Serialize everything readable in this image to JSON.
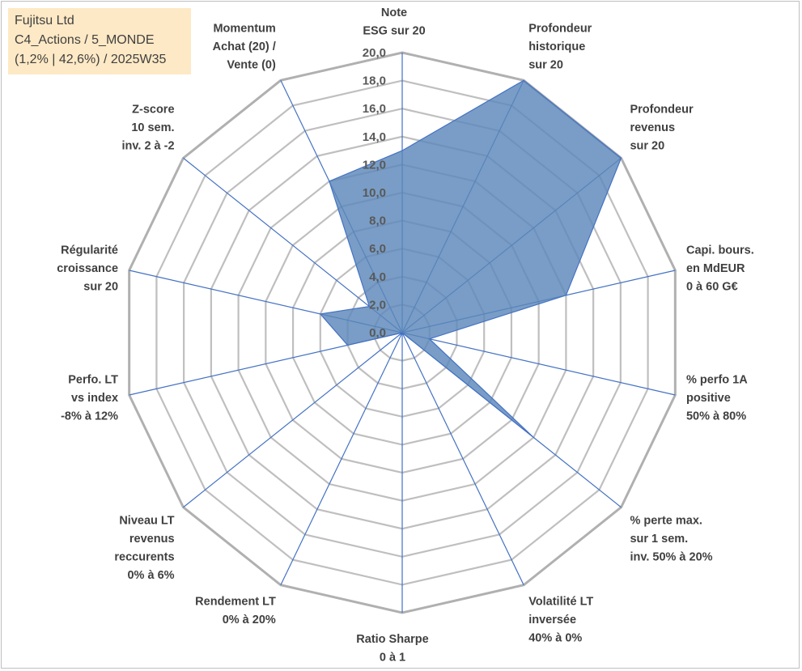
{
  "info_box": {
    "line1": "Fujitsu Ltd",
    "line2": "C4_Actions / 5_MONDE",
    "line3": "(1,2% | 42,6%) / 2025W35"
  },
  "colors": {
    "fill": "#5b87ba",
    "stroke": "#4472c4",
    "grid": "#bfbfbf",
    "grid_outer": "#b0b0b0"
  },
  "chart_data": {
    "type": "radar",
    "ylim": [
      0,
      20
    ],
    "tick_step": 2,
    "tick_labels": [
      "0,0",
      "2,0",
      "4,0",
      "6,0",
      "8,0",
      "10,0",
      "12,0",
      "14,0",
      "16,0",
      "18,0",
      "20,0"
    ],
    "axes": [
      {
        "label": [
          "Note",
          "ESG sur 20"
        ],
        "value": 13.0
      },
      {
        "label": [
          "Profondeur",
          "historique",
          "sur 20"
        ],
        "value": 20.0
      },
      {
        "label": [
          "Profondeur",
          "revenus",
          "sur 20"
        ],
        "value": 20.0
      },
      {
        "label": [
          "Capi. bours.",
          "en MdEUR",
          "0 à 60 G€"
        ],
        "value": 12.0
      },
      {
        "label": [
          "% perfo 1A",
          "positive",
          "50% à 80%"
        ],
        "value": 2.0
      },
      {
        "label": [
          "% perte max.",
          "sur 1 sem.",
          "inv. 50% à 20%"
        ],
        "value": 12.0
      },
      {
        "label": [
          "Volatilité LT",
          "inversée",
          "40% à 0%"
        ],
        "value": 0.0
      },
      {
        "label": [
          "Ratio Sharpe",
          "0 à 1"
        ],
        "value": 0.0
      },
      {
        "label": [
          "Rendement LT",
          "0% à 20%"
        ],
        "value": 0.0
      },
      {
        "label": [
          "Niveau LT",
          "revenus",
          "reccurents",
          "0% à 6%"
        ],
        "value": 0.0
      },
      {
        "label": [
          "Perfo. LT",
          "vs index",
          "-8% à 12%"
        ],
        "value": 4.0
      },
      {
        "label": [
          "Régularité",
          "croissance",
          "sur 20"
        ],
        "value": 6.0
      },
      {
        "label": [
          "Z-score",
          "10 sem.",
          "inv. 2 à -2"
        ],
        "value": 3.0
      },
      {
        "label": [
          "Momentum",
          "Achat (20) /",
          "Vente (0)"
        ],
        "value": 12.0
      }
    ]
  }
}
